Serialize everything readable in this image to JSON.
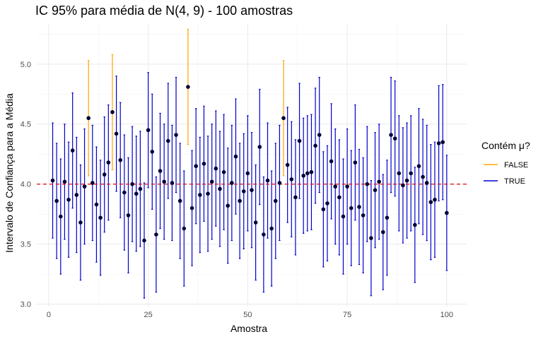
{
  "chart_data": {
    "type": "errorbar",
    "title": "IC 95% para média de N(4, 9) - 100 amostras",
    "xlabel": "Amostra",
    "ylabel": "Intervalo de Confiança para a Média",
    "xlim": [
      -3,
      105
    ],
    "ylim": [
      2.98,
      5.34
    ],
    "x_ticks": [
      "0",
      "25",
      "50",
      "75",
      "100"
    ],
    "y_ticks": [
      "3.0",
      "3.5",
      "4.0",
      "4.5",
      "5.0"
    ],
    "reference_line": {
      "value": 4.0,
      "color": "#e31a1c",
      "style": "dashed"
    },
    "grid": true,
    "legend": {
      "title": "Contém μ?",
      "placement": "right",
      "entries": [
        {
          "label": "FALSE",
          "color": "#ffa500"
        },
        {
          "label": "TRUE",
          "color": "#0000cd"
        }
      ]
    },
    "half_width": 0.48,
    "samples": [
      4.03,
      3.86,
      3.73,
      4.02,
      3.87,
      4.28,
      3.91,
      3.68,
      3.98,
      4.55,
      4.01,
      3.83,
      3.72,
      4.08,
      4.18,
      4.6,
      4.42,
      4.2,
      3.93,
      3.74,
      4.0,
      3.92,
      3.96,
      3.53,
      4.45,
      4.27,
      3.58,
      4.11,
      4.02,
      4.36,
      4.01,
      4.41,
      3.86,
      3.63,
      4.81,
      3.8,
      4.15,
      3.91,
      4.17,
      3.92,
      4.02,
      4.13,
      3.96,
      4.1,
      3.82,
      4.01,
      4.23,
      3.86,
      3.94,
      4.09,
      3.95,
      3.68,
      4.31,
      3.58,
      4.03,
      3.63,
      3.86,
      4.01,
      4.55,
      4.16,
      4.04,
      3.89,
      4.36,
      4.07,
      4.09,
      4.1,
      4.32,
      4.41,
      3.79,
      3.84,
      4.19,
      3.98,
      3.89,
      3.73,
      3.98,
      3.8,
      4.18,
      3.81,
      3.74,
      4.0,
      3.55,
      3.95,
      4.02,
      3.6,
      3.72,
      4.41,
      4.38,
      4.09,
      3.99,
      4.03,
      4.09,
      3.66,
      4.15,
      4.06,
      4.01,
      3.85,
      3.87,
      4.34,
      4.35,
      3.76
    ],
    "contains_mu": [
      true,
      true,
      true,
      true,
      true,
      true,
      true,
      true,
      true,
      false,
      true,
      true,
      true,
      true,
      true,
      false,
      true,
      true,
      true,
      true,
      true,
      true,
      true,
      true,
      true,
      true,
      true,
      true,
      true,
      true,
      true,
      true,
      true,
      true,
      false,
      true,
      true,
      true,
      true,
      true,
      true,
      true,
      true,
      true,
      true,
      true,
      true,
      true,
      true,
      true,
      true,
      true,
      true,
      true,
      true,
      true,
      true,
      true,
      false,
      true,
      true,
      true,
      true,
      true,
      true,
      true,
      true,
      true,
      true,
      true,
      true,
      true,
      true,
      true,
      true,
      true,
      true,
      true,
      true,
      true,
      true,
      true,
      true,
      true,
      true,
      true,
      true,
      true,
      true,
      true,
      true,
      true,
      true,
      true,
      true,
      true,
      true,
      true,
      true,
      true
    ],
    "point_color": "#000033"
  }
}
